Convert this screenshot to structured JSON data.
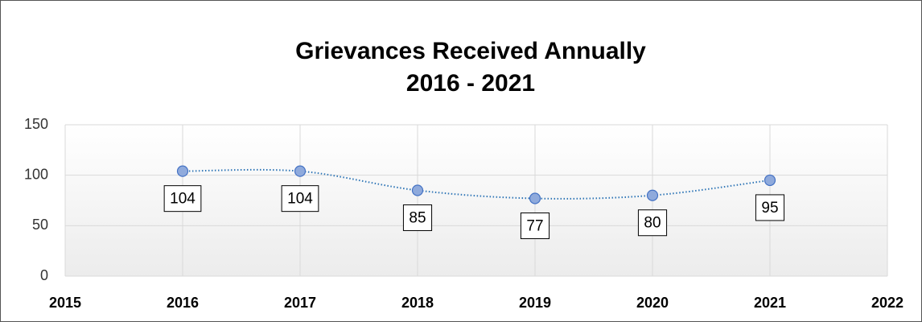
{
  "chart_data": {
    "type": "line",
    "title": "Grievances Received Annually",
    "subtitle": "2016 - 2021",
    "x": [
      2016,
      2017,
      2018,
      2019,
      2020,
      2021
    ],
    "values": [
      104,
      104,
      85,
      77,
      80,
      95
    ],
    "color": "#2e75b6",
    "marker_color": "#8faadc",
    "xlim": [
      2015,
      2022
    ],
    "xticks": [
      2015,
      2016,
      2017,
      2018,
      2019,
      2020,
      2021,
      2022
    ],
    "ylim": [
      0,
      150
    ],
    "yticks": [
      0,
      50,
      100,
      150
    ],
    "grid": true
  }
}
